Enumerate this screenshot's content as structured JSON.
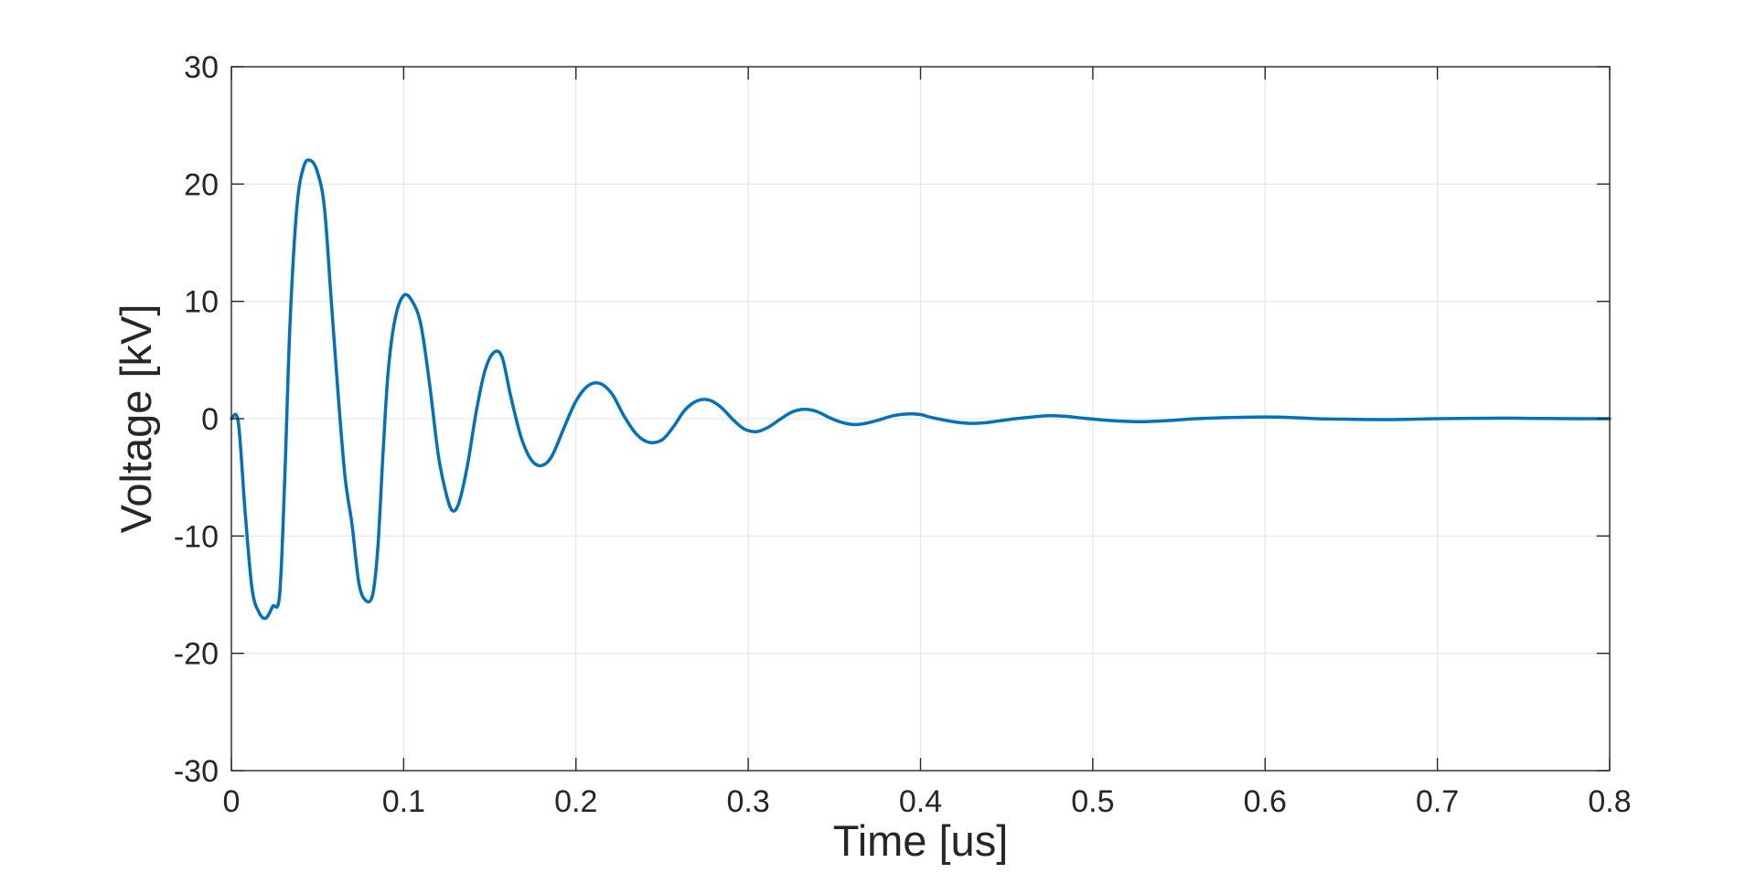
{
  "chart_data": {
    "type": "line",
    "title": "",
    "xlabel": "Time [us]",
    "ylabel": "Voltage [kV]",
    "xlim": [
      0,
      0.8
    ],
    "ylim": [
      -30,
      30
    ],
    "xticks": [
      "0",
      "0.1",
      "0.2",
      "0.3",
      "0.4",
      "0.5",
      "0.6",
      "0.7",
      "0.8"
    ],
    "yticks": [
      "30",
      "20",
      "10",
      "0",
      "-10",
      "-20",
      "-30"
    ],
    "grid": true,
    "legend": "none",
    "series": [
      {
        "color": "#0072BD",
        "x": [
          0,
          0.004,
          0.008,
          0.012,
          0.016,
          0.02,
          0.024,
          0.028,
          0.031,
          0.034,
          0.038,
          0.042,
          0.046,
          0.05,
          0.054,
          0.058,
          0.062,
          0.066,
          0.07,
          0.074,
          0.078,
          0.082,
          0.085,
          0.088,
          0.091,
          0.095,
          0.1,
          0.105,
          0.11,
          0.115,
          0.12,
          0.124,
          0.128,
          0.132,
          0.137,
          0.142,
          0.147,
          0.152,
          0.157,
          0.162,
          0.168,
          0.174,
          0.18,
          0.186,
          0.193,
          0.2,
          0.207,
          0.214,
          0.221,
          0.228,
          0.235,
          0.242,
          0.25,
          0.257,
          0.263,
          0.27,
          0.277,
          0.284,
          0.292,
          0.298,
          0.305,
          0.312,
          0.319,
          0.326,
          0.333,
          0.34,
          0.347,
          0.354,
          0.361,
          0.368,
          0.376,
          0.384,
          0.392,
          0.4,
          0.405,
          0.413,
          0.421,
          0.429,
          0.437,
          0.445,
          0.455,
          0.465,
          0.474,
          0.484,
          0.494,
          0.505,
          0.515,
          0.53,
          0.545,
          0.56,
          0.58,
          0.6,
          0.615,
          0.63,
          0.65,
          0.67,
          0.685,
          0.7,
          0.72,
          0.74,
          0.76,
          0.78,
          0.8
        ],
        "y": [
          0,
          -0.3,
          -8,
          -14.5,
          -16.5,
          -17,
          -16,
          -15,
          -5,
          8,
          18,
          21.5,
          22,
          21,
          18,
          10,
          2,
          -5,
          -9,
          -14,
          -15.5,
          -15,
          -11,
          -3,
          4,
          8.5,
          10.5,
          10,
          8,
          3,
          -3,
          -6,
          -7.8,
          -7.2,
          -4,
          0.5,
          4,
          5.6,
          5.3,
          2,
          -1.5,
          -3.5,
          -4,
          -3.2,
          -0.8,
          1.5,
          2.8,
          3,
          2.1,
          0.2,
          -1.3,
          -2,
          -1.8,
          -0.6,
          0.7,
          1.5,
          1.6,
          1,
          -0.2,
          -0.9,
          -1.1,
          -0.7,
          0,
          0.6,
          0.8,
          0.6,
          0.1,
          -0.3,
          -0.5,
          -0.4,
          -0.1,
          0.25,
          0.4,
          0.35,
          0.15,
          -0.1,
          -0.3,
          -0.4,
          -0.35,
          -0.2,
          0,
          0.15,
          0.25,
          0.2,
          0.05,
          -0.1,
          -0.2,
          -0.25,
          -0.15,
          0,
          0.1,
          0.15,
          0.1,
          0,
          -0.05,
          -0.08,
          -0.05,
          0,
          0.03,
          0.05,
          0.02,
          0,
          0
        ]
      }
    ]
  }
}
